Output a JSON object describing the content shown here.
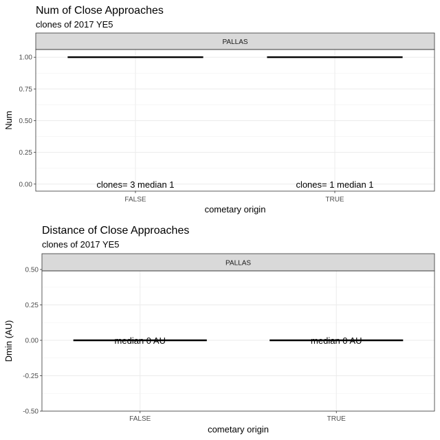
{
  "chart_data": [
    {
      "type": "boxplot",
      "title": "Num of Close Approaches",
      "subtitle": "clones of 2017 YE5",
      "facet": "PALLAS",
      "xlabel": "cometary origin",
      "ylabel": "Num",
      "categories": [
        "FALSE",
        "TRUE"
      ],
      "values": [
        1,
        1
      ],
      "ylim": [
        -0.05,
        1.05
      ],
      "yticks": [
        0.0,
        0.25,
        0.5,
        0.75,
        1.0
      ],
      "ytick_labels": [
        "0.00",
        "0.25",
        "0.50",
        "0.75",
        "1.00"
      ],
      "annotations": [
        {
          "category": "FALSE",
          "y": 0,
          "text": "clones= 3 median 1"
        },
        {
          "category": "TRUE",
          "y": 0,
          "text": "clones= 1 median 1"
        }
      ],
      "grid": true
    },
    {
      "type": "boxplot",
      "title": "Distance of Close Approaches",
      "subtitle": "clones of 2017 YE5",
      "facet": "PALLAS",
      "xlabel": "cometary origin",
      "ylabel": "Dmin (AU)",
      "categories": [
        "FALSE",
        "TRUE"
      ],
      "values": [
        0,
        0
      ],
      "ylim": [
        -0.5,
        0.5
      ],
      "yticks": [
        -0.5,
        -0.25,
        0.0,
        0.25,
        0.5
      ],
      "ytick_labels": [
        "-0.50",
        "-0.25",
        "0.00",
        "0.25",
        "0.50"
      ],
      "annotations": [
        {
          "category": "FALSE",
          "y": 0,
          "text": "median 0 AU"
        },
        {
          "category": "TRUE",
          "y": 0,
          "text": "median 0 AU"
        }
      ],
      "grid": true
    }
  ]
}
